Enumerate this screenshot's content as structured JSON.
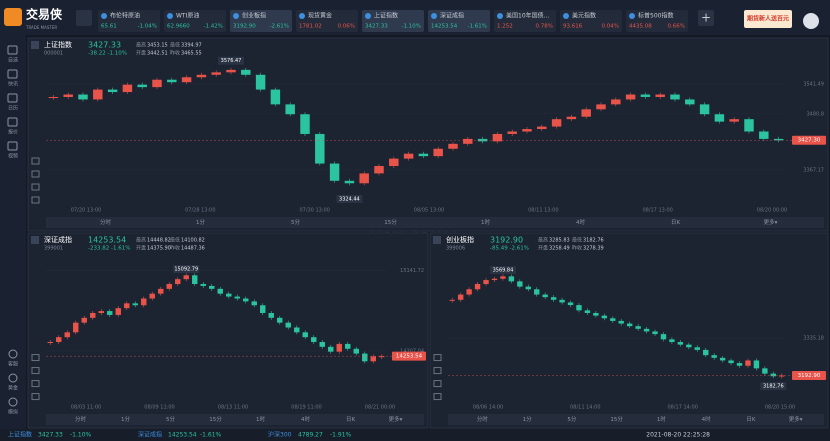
{
  "app": {
    "logo": "交易侠",
    "logo_sub": "TRADE MASTER",
    "ad": "期货新人送百元",
    "watermark": "交易侠",
    "watermark_sub": "TRADE MASTER"
  },
  "tickers": [
    {
      "name": "布伦特原油",
      "price": "65.61",
      "change": "-1.04%",
      "up": false
    },
    {
      "name": "WTI原油",
      "price": "62.9660",
      "change": "-1.42%",
      "up": false
    },
    {
      "name": "创业板指",
      "price": "3192.90",
      "change": "-2.61%",
      "up": false,
      "active": true
    },
    {
      "name": "现货黄金",
      "price": "1781.02",
      "change": "0.06%",
      "up": true
    },
    {
      "name": "上证指数",
      "price": "3427.33",
      "change": "-1.10%",
      "up": false,
      "active": true
    },
    {
      "name": "深证成指",
      "price": "14253.54",
      "change": "-1.61%",
      "up": false,
      "active": true
    },
    {
      "name": "美国10年国债...",
      "price": "1.252",
      "change": "0.78%",
      "up": true
    },
    {
      "name": "美元指数",
      "price": "93.616",
      "change": "0.04%",
      "up": true
    },
    {
      "name": "标普500指数",
      "price": "4435.08",
      "change": "0.66%",
      "up": true
    }
  ],
  "sidebar_top": [
    "自选",
    "快讯",
    "日历",
    "报价",
    "视频"
  ],
  "sidebar_bottom": [
    "客服",
    "黄金",
    "模拟"
  ],
  "charts": [
    {
      "type": "candlestick",
      "name": "上证指数",
      "code": "000001",
      "price": "3427.33",
      "change": "-38.22  -1.10%",
      "stats": [
        [
          "最高",
          "3453.15"
        ],
        [
          "开盘",
          "3442.51"
        ],
        [
          "最低",
          "3394.97"
        ],
        [
          "昨收",
          "3465.55"
        ]
      ],
      "closes": [
        3515,
        3520,
        3510,
        3530,
        3525,
        3540,
        3535,
        3550,
        3545,
        3555,
        3560,
        3565,
        3570,
        3560,
        3530,
        3500,
        3480,
        3440,
        3380,
        3345,
        3340,
        3360,
        3375,
        3390,
        3400,
        3395,
        3410,
        3420,
        3430,
        3425,
        3440,
        3445,
        3450,
        3455,
        3470,
        3475,
        3490,
        3500,
        3510,
        3520,
        3515,
        3520,
        3510,
        3500,
        3480,
        3465,
        3470,
        3445,
        3430,
        3427
      ],
      "ylim": [
        3300,
        3590
      ],
      "yticks": [
        3541.49,
        3480.8,
        3367.17
      ],
      "price_tag": {
        "value": 3427.3,
        "label": "3427.30"
      },
      "max_label": 3576.47,
      "min_label": 3324.44,
      "xticks": [
        "07/20 13:00",
        "07/28 13:00",
        "07/30 13:00",
        "08/05 13:00",
        "08/11 13:00",
        "08/17 13:00",
        "08/20 00:00"
      ],
      "periods": [
        "分时",
        "1分",
        "5分",
        "15分",
        "1时",
        "4时",
        "日K",
        "更多▾"
      ]
    },
    {
      "type": "candlestick",
      "name": "深证成指",
      "code": "399001",
      "price": "14253.54",
      "change": "-233.82  -1.61%",
      "stats": [
        [
          "最高",
          "14448.82"
        ],
        [
          "开盘",
          "14375.90"
        ],
        [
          "最低",
          "14100.82"
        ],
        [
          "昨收",
          "14487.36"
        ]
      ],
      "closes": [
        14400,
        14450,
        14500,
        14600,
        14650,
        14700,
        14720,
        14680,
        14750,
        14800,
        14780,
        14850,
        14900,
        14950,
        15000,
        15050,
        15090,
        15000,
        14980,
        14950,
        14900,
        14870,
        14850,
        14820,
        14780,
        14700,
        14650,
        14600,
        14550,
        14500,
        14450,
        14400,
        14350,
        14300,
        14380,
        14330,
        14280,
        14200,
        14250,
        14253.54
      ],
      "ylim": [
        13800,
        15300
      ],
      "yticks": [
        15141.72,
        14307.04
      ],
      "price_tag": {
        "value": 14253.54,
        "label": "14253.54"
      },
      "max_label": 15092.79,
      "xticks": [
        "08/03 11:00",
        "08/09 11:00",
        "08/13 11:00",
        "08/19 11:00",
        "08/21 00:00"
      ],
      "periods": [
        "分时",
        "1分",
        "5分",
        "15分",
        "1时",
        "4时",
        "日K",
        "更多▾"
      ]
    },
    {
      "type": "candlestick",
      "name": "创业板指",
      "code": "399006",
      "price": "3192.90",
      "change": "-85.49  -2.61%",
      "stats": [
        [
          "最高",
          "3285.83"
        ],
        [
          "开盘",
          "3258.49"
        ],
        [
          "最低",
          "3182.76"
        ],
        [
          "昨收",
          "3278.39"
        ]
      ],
      "closes": [
        3480,
        3500,
        3520,
        3540,
        3555,
        3560,
        3569,
        3550,
        3530,
        3520,
        3500,
        3490,
        3480,
        3470,
        3460,
        3440,
        3430,
        3420,
        3410,
        3400,
        3390,
        3380,
        3370,
        3360,
        3350,
        3330,
        3320,
        3310,
        3300,
        3290,
        3270,
        3260,
        3250,
        3240,
        3230,
        3250,
        3220,
        3200,
        3190,
        3192.9
      ],
      "ylim": [
        3100,
        3650
      ],
      "yticks": [
        3335.18
      ],
      "price_tag": {
        "value": 3192.9,
        "label": "3192.90"
      },
      "max_label": 3569.84,
      "min_label": 3182.76,
      "xticks": [
        "08/06 14:00",
        "08/11 14:00",
        "08/17 14:00",
        "08/20 15:00"
      ],
      "periods": [
        "分时",
        "1分",
        "5分",
        "15分",
        "1时",
        "4时",
        "日K",
        "更多▾"
      ]
    }
  ],
  "status": {
    "items": [
      [
        "上证指数",
        "3427.33",
        "-1.10%"
      ],
      [
        "深证成指",
        "14253.54",
        "-1.61%"
      ],
      [
        "沪深300",
        "4789.27",
        "-1.91%"
      ]
    ],
    "time": "2021-08-20 22:25:28"
  }
}
